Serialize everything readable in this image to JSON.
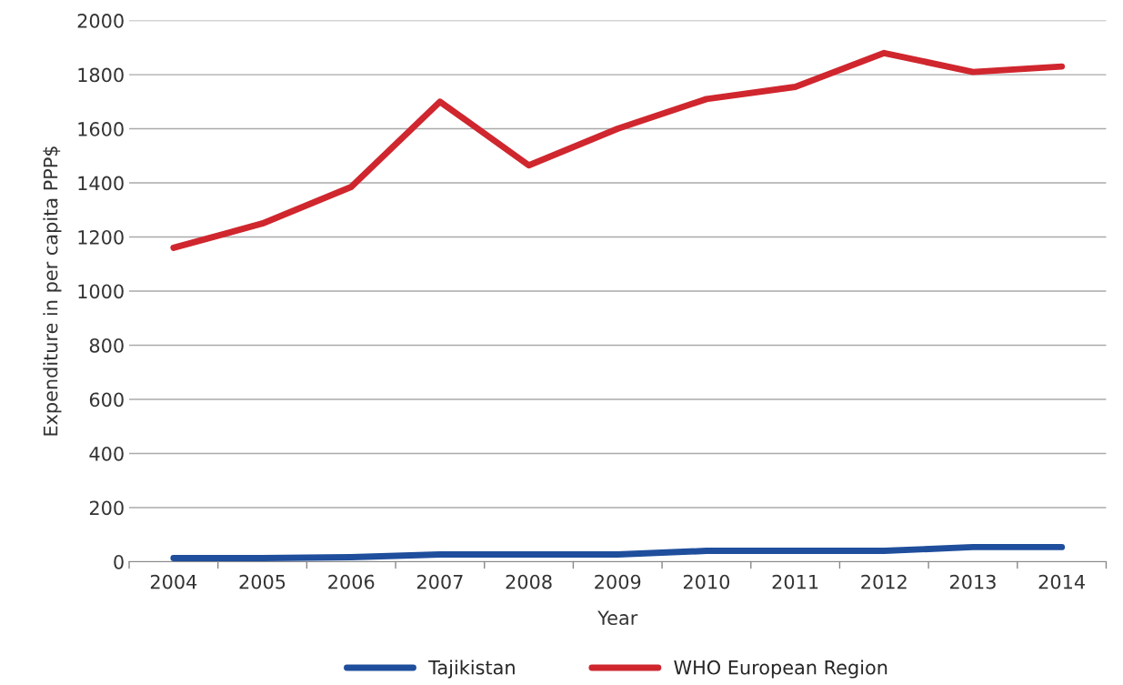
{
  "chart_data": {
    "type": "line",
    "xlabel": "Year",
    "ylabel": "Expenditure in per capita PPP$",
    "categories": [
      "2004",
      "2005",
      "2006",
      "2007",
      "2008",
      "2009",
      "2010",
      "2011",
      "2012",
      "2013",
      "2014"
    ],
    "series": [
      {
        "name": "Tajikistan",
        "color": "#1f4e9c",
        "values": [
          13,
          13,
          17,
          27,
          27,
          27,
          40,
          40,
          40,
          54,
          54
        ]
      },
      {
        "name": "WHO European Region",
        "color": "#d0262e",
        "values": [
          1160,
          1250,
          1385,
          1700,
          1465,
          1600,
          1710,
          1755,
          1880,
          1810,
          1830
        ]
      }
    ],
    "ylim": [
      0,
      2000
    ],
    "yticks": [
      0,
      200,
      400,
      600,
      800,
      1000,
      1200,
      1400,
      1600,
      1800,
      2000
    ],
    "grid": "y",
    "legend": "bottom",
    "marker": "none",
    "line_style": "solid"
  }
}
